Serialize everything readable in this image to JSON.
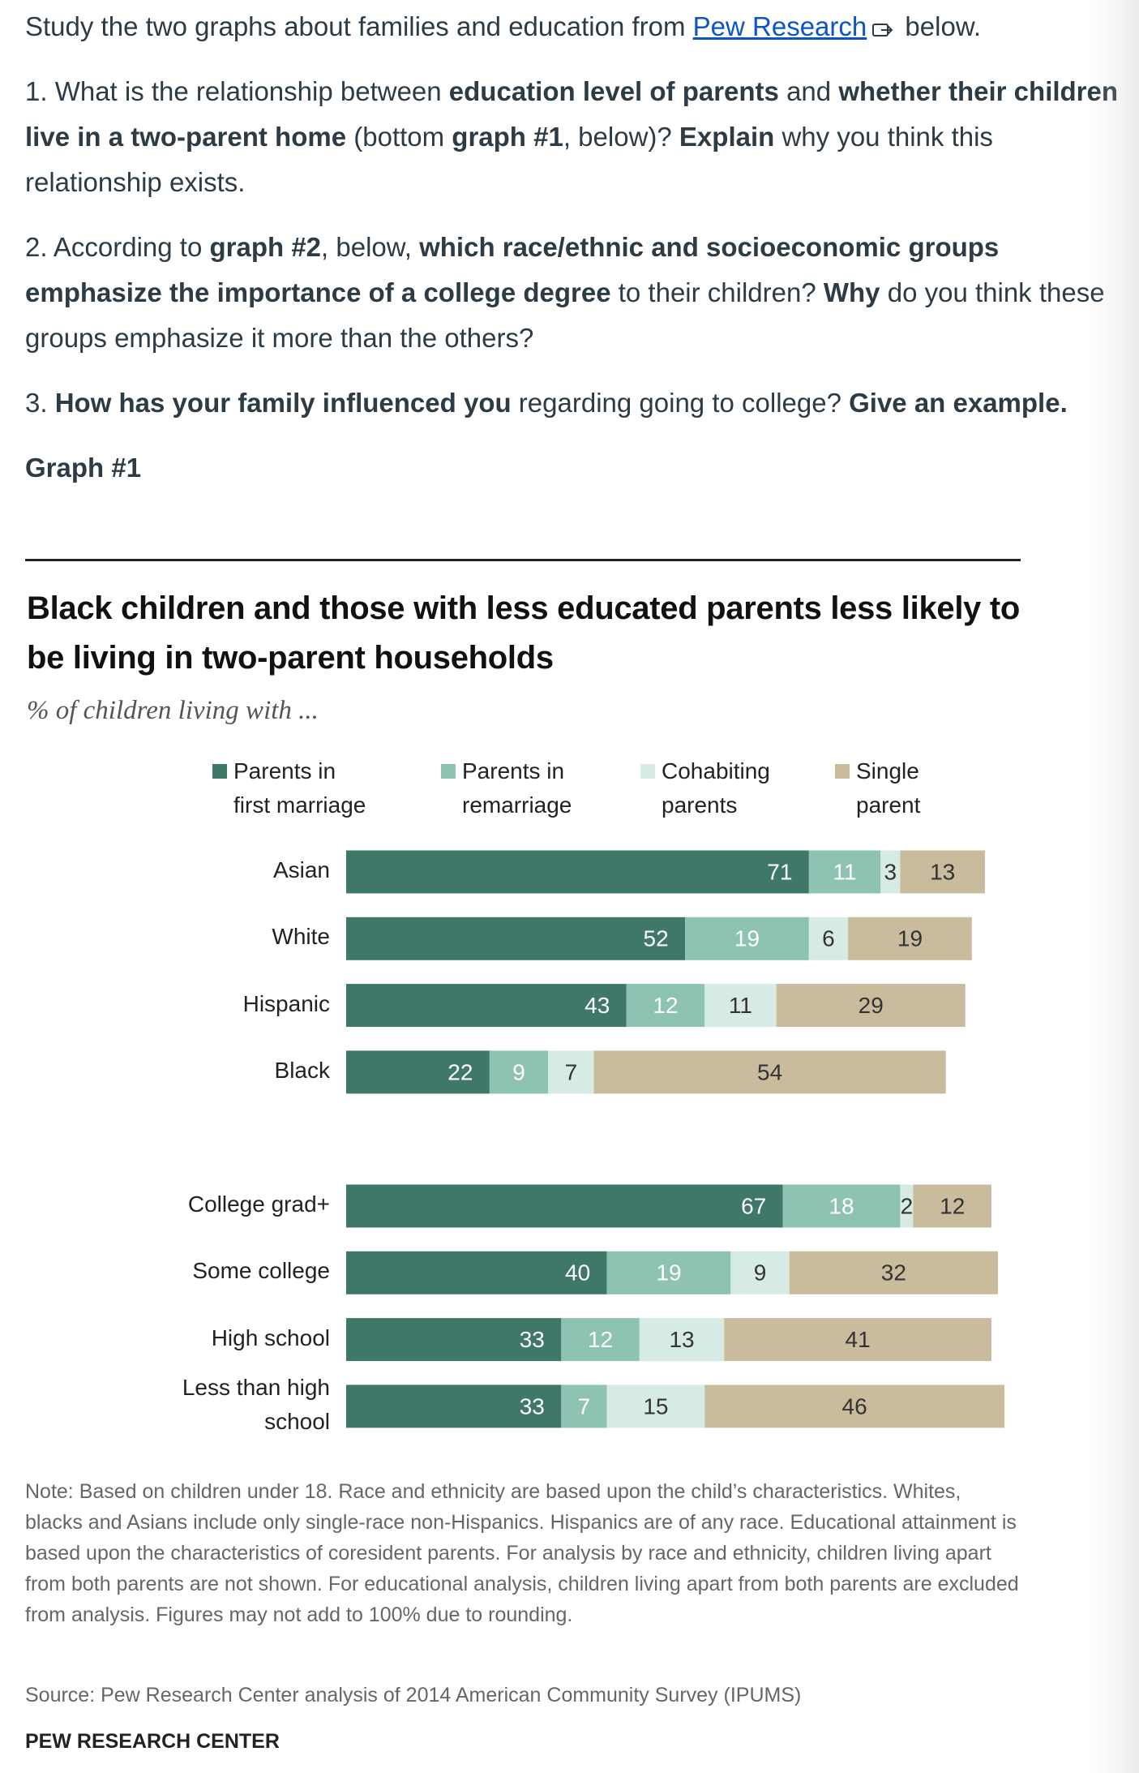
{
  "intro": {
    "segments": [
      {
        "text": "Study the two graphs about families and education from "
      },
      {
        "text": "Pew Research",
        "link": true
      },
      {
        "text": " below."
      }
    ]
  },
  "questions": [
    {
      "segments": [
        {
          "text": "1. What is the relationship between "
        },
        {
          "text": "education level of parents",
          "bold": true
        },
        {
          "text": " and "
        },
        {
          "text": "whether their children live in a two-parent home",
          "bold": true
        },
        {
          "text": " (bottom "
        },
        {
          "text": "graph #1",
          "bold": true
        },
        {
          "text": ", below)? "
        },
        {
          "text": "Explain",
          "bold": true
        },
        {
          "text": " why you think this relationship exists."
        }
      ]
    },
    {
      "segments": [
        {
          "text": "2. According to "
        },
        {
          "text": "graph #2",
          "bold": true
        },
        {
          "text": ", below, "
        },
        {
          "text": "which race/ethnic and socioeconomic groups emphasize the importance of a college degree",
          "bold": true
        },
        {
          "text": " to their children? "
        },
        {
          "text": "Why",
          "bold": true
        },
        {
          "text": " do you think these groups emphasize it more than the others?"
        }
      ]
    },
    {
      "segments": [
        {
          "text": "3. "
        },
        {
          "text": "How has your family influenced you",
          "bold": true
        },
        {
          "text": " regarding going to college? "
        },
        {
          "text": "Give an example.",
          "bold": true
        }
      ]
    }
  ],
  "graph_label": "Graph #1",
  "chart_data": {
    "type": "stacked-bar",
    "orientation": "horizontal",
    "title": "Black children and those with less educated parents less likely to be living in two-parent households",
    "subtitle": "% of children living with ...",
    "categories": [
      "Asian",
      "White",
      "Hispanic",
      "Black",
      "College grad+",
      "Some college",
      "High school",
      "Less than high school"
    ],
    "series": [
      {
        "name": "Parents in first marriage",
        "color": "#3f7868",
        "values": [
          71,
          52,
          43,
          22,
          67,
          40,
          33,
          33
        ]
      },
      {
        "name": "Parents in remarriage",
        "color": "#8ec3b4",
        "values": [
          11,
          19,
          12,
          9,
          18,
          19,
          12,
          7
        ]
      },
      {
        "name": "Cohabiting parents",
        "color": "#d7ebe5",
        "values": [
          3,
          6,
          11,
          7,
          2,
          9,
          13,
          15
        ]
      },
      {
        "name": "Single parent",
        "color": "#c8bc9c",
        "values": [
          13,
          19,
          29,
          54,
          12,
          32,
          41,
          46
        ]
      }
    ],
    "legend": "top"
  },
  "note": "Note: Based on children under 18. Race and ethnicity are based upon the child’s characteristics. Whites, blacks and Asians include only single-race non-Hispanics. Hispanics are of any race. Educational attainment is based upon the characteristics of coresident parents. For analysis by race and ethnicity, children living apart from both parents are not shown. For educational analysis, children living apart from both parents are excluded from analysis. Figures may not add to 100% due to rounding.",
  "source": "Source: Pew Research Center analysis of 2014 American Community Survey (IPUMS)",
  "footer": "PEW RESEARCH CENTER"
}
